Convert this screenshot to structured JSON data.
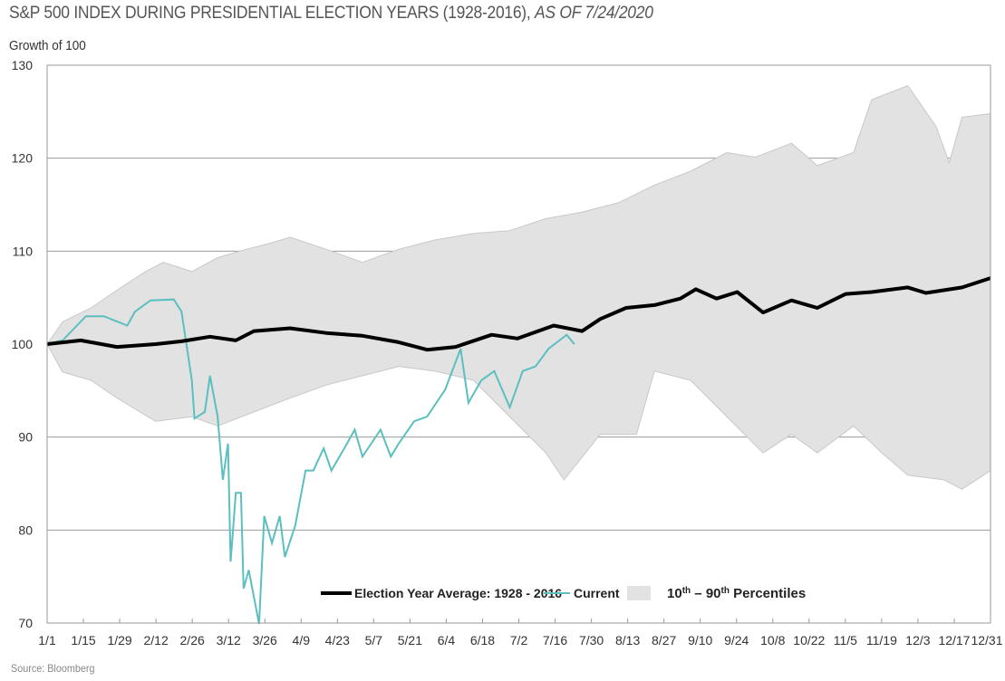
{
  "chart_data": {
    "type": "line",
    "title": "S&P 500 INDEX DURING PRESIDENTIAL ELECTION YEARS (1928-2016),",
    "title_italic": "AS OF 7/24/2020",
    "ylabel": "Growth of 100",
    "source": "Source: Bloomberg",
    "ylim": [
      70,
      130
    ],
    "yticks": [
      70,
      80,
      90,
      100,
      110,
      120,
      130
    ],
    "xlim_days": [
      0,
      365
    ],
    "xticks": [
      "1/1",
      "1/15",
      "1/29",
      "2/12",
      "2/26",
      "3/12",
      "3/26",
      "4/9",
      "4/23",
      "5/7",
      "5/21",
      "6/4",
      "6/18",
      "7/2",
      "7/16",
      "7/30",
      "8/13",
      "8/27",
      "9/10",
      "9/24",
      "10/8",
      "10/22",
      "11/5",
      "11/19",
      "12/3",
      "12/17",
      "12/31"
    ],
    "grid": "horizontal",
    "legend_placement": "bottom-center",
    "colors": {
      "average": "#000000",
      "current": "#5bbfc0",
      "band": "#e2e2e2",
      "band_edge": "#c8c8c8",
      "grid": "#999999"
    },
    "legend": {
      "average": "Election Year Average: 1928 - 2016",
      "current": "Current",
      "band_prefix": "10",
      "band_sup1": "th",
      "band_mid": " – 90",
      "band_sup2": "th",
      "band_suffix": " Percentiles"
    },
    "band_upper": [
      [
        0,
        100
      ],
      [
        6,
        102.4
      ],
      [
        17,
        103.9
      ],
      [
        27,
        105.8
      ],
      [
        38,
        107.8
      ],
      [
        45,
        108.8
      ],
      [
        56,
        107.8
      ],
      [
        66,
        109.3
      ],
      [
        77,
        110.2
      ],
      [
        87,
        110.9
      ],
      [
        94,
        111.5
      ],
      [
        108,
        110.2
      ],
      [
        122,
        108.8
      ],
      [
        136,
        110.2
      ],
      [
        150,
        111.2
      ],
      [
        165,
        111.9
      ],
      [
        179,
        112.2
      ],
      [
        193,
        113.5
      ],
      [
        207,
        114.2
      ],
      [
        221,
        115.2
      ],
      [
        235,
        117.1
      ],
      [
        249,
        118.6
      ],
      [
        263,
        120.6
      ],
      [
        274,
        120.1
      ],
      [
        288,
        121.6
      ],
      [
        298,
        119.2
      ],
      [
        312,
        120.6
      ],
      [
        319,
        126.3
      ],
      [
        333,
        127.8
      ],
      [
        344,
        123.4
      ],
      [
        349,
        119.5
      ],
      [
        354,
        124.4
      ],
      [
        365,
        124.8
      ]
    ],
    "band_lower": [
      [
        0,
        100
      ],
      [
        6,
        97
      ],
      [
        17,
        96.1
      ],
      [
        27,
        94.2
      ],
      [
        42,
        91.7
      ],
      [
        56,
        92.2
      ],
      [
        66,
        91.2
      ],
      [
        80,
        92.7
      ],
      [
        94,
        94.2
      ],
      [
        108,
        95.6
      ],
      [
        122,
        96.6
      ],
      [
        136,
        97.6
      ],
      [
        150,
        97.1
      ],
      [
        165,
        96.1
      ],
      [
        179,
        92.2
      ],
      [
        193,
        88.3
      ],
      [
        200,
        85.4
      ],
      [
        214,
        90.3
      ],
      [
        228,
        90.3
      ],
      [
        235,
        97.1
      ],
      [
        249,
        96.1
      ],
      [
        263,
        92.2
      ],
      [
        277,
        88.3
      ],
      [
        288,
        90.3
      ],
      [
        298,
        88.3
      ],
      [
        312,
        91.2
      ],
      [
        323,
        88.3
      ],
      [
        333,
        85.9
      ],
      [
        347,
        85.4
      ],
      [
        354,
        84.4
      ],
      [
        365,
        86.4
      ]
    ],
    "average": [
      [
        0,
        100
      ],
      [
        13,
        100.4
      ],
      [
        27,
        99.7
      ],
      [
        42,
        100
      ],
      [
        52,
        100.3
      ],
      [
        63,
        100.8
      ],
      [
        73,
        100.4
      ],
      [
        80,
        101.4
      ],
      [
        94,
        101.7
      ],
      [
        108,
        101.2
      ],
      [
        122,
        100.9
      ],
      [
        136,
        100.2
      ],
      [
        147,
        99.4
      ],
      [
        158,
        99.7
      ],
      [
        172,
        101
      ],
      [
        182,
        100.6
      ],
      [
        196,
        102
      ],
      [
        207,
        101.4
      ],
      [
        214,
        102.7
      ],
      [
        224,
        103.9
      ],
      [
        235,
        104.2
      ],
      [
        245,
        104.9
      ],
      [
        251,
        105.9
      ],
      [
        259,
        104.9
      ],
      [
        267,
        105.6
      ],
      [
        277,
        103.4
      ],
      [
        288,
        104.7
      ],
      [
        298,
        103.9
      ],
      [
        309,
        105.4
      ],
      [
        319,
        105.6
      ],
      [
        333,
        106.1
      ],
      [
        340,
        105.5
      ],
      [
        354,
        106.1
      ],
      [
        365,
        107.1
      ]
    ],
    "current": [
      [
        0,
        100
      ],
      [
        6,
        100.4
      ],
      [
        15,
        103
      ],
      [
        22,
        103
      ],
      [
        31,
        102
      ],
      [
        34,
        103.5
      ],
      [
        40,
        104.7
      ],
      [
        49,
        104.8
      ],
      [
        52,
        103.5
      ],
      [
        56,
        96.1
      ],
      [
        57,
        92
      ],
      [
        61,
        92.7
      ],
      [
        63,
        96.6
      ],
      [
        66,
        92.2
      ],
      [
        68,
        85.4
      ],
      [
        70,
        89.3
      ],
      [
        71,
        76.6
      ],
      [
        73,
        84
      ],
      [
        75,
        84
      ],
      [
        76,
        73.7
      ],
      [
        78,
        75.7
      ],
      [
        82,
        69.9
      ],
      [
        84,
        81.5
      ],
      [
        87,
        78.6
      ],
      [
        90,
        81.5
      ],
      [
        92,
        77.1
      ],
      [
        96,
        80.5
      ],
      [
        100,
        86.4
      ],
      [
        103,
        86.4
      ],
      [
        107,
        88.8
      ],
      [
        110,
        86.4
      ],
      [
        115,
        88.8
      ],
      [
        119,
        90.8
      ],
      [
        122,
        87.9
      ],
      [
        129,
        90.8
      ],
      [
        133,
        87.9
      ],
      [
        136,
        89.3
      ],
      [
        142,
        91.7
      ],
      [
        147,
        92.2
      ],
      [
        154,
        95.1
      ],
      [
        160,
        99.5
      ],
      [
        163,
        93.7
      ],
      [
        168,
        96.1
      ],
      [
        173,
        97.1
      ],
      [
        179,
        93.2
      ],
      [
        184,
        97.1
      ],
      [
        189,
        97.6
      ],
      [
        194,
        99.5
      ],
      [
        201,
        101
      ],
      [
        204,
        100
      ]
    ]
  }
}
